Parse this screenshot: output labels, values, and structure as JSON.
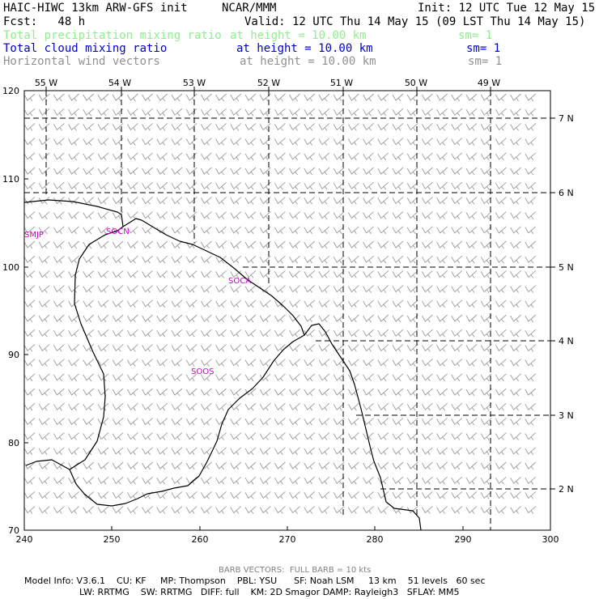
{
  "header": {
    "model": "HAIC-HIWC 13km ARW-GFS init",
    "org": "NCAR/MMM",
    "init": "Init: 12 UTC Tue 12 May 15",
    "fcst": "Fcst:   48 h",
    "valid": "Valid: 12 UTC Thu 14 May 15 (09 LST Thu 14 May 15)"
  },
  "fields": [
    {
      "name": "Total precipitation mixing ratio",
      "level": "at height = 10.00 km",
      "sm": "sm= 1",
      "color": "#90ee90"
    },
    {
      "name": "Total cloud mixing ratio",
      "level": "at height = 10.00 km",
      "sm": "sm= 1",
      "color": "#0000cc"
    },
    {
      "name": "Horizontal wind vectors",
      "level": "at height = 10.00 km",
      "sm": "sm= 1",
      "color": "#909090"
    }
  ],
  "map": {
    "lon_labels": [
      "55 W",
      "54 W",
      "53 W",
      "52 W",
      "51 W",
      "50 W",
      "49 W"
    ],
    "lat_labels": [
      "7 N",
      "6 N",
      "5 N",
      "4 N",
      "3 N",
      "2 N"
    ],
    "x_ticks": [
      "240",
      "250",
      "260",
      "270",
      "280",
      "290",
      "300"
    ],
    "y_ticks": [
      "120",
      "110",
      "100",
      "90",
      "80",
      "70"
    ],
    "x_range": [
      240,
      300
    ],
    "y_range": [
      70,
      120
    ],
    "stations": [
      "SMJP",
      "SOCN",
      "SOCA",
      "SOOS"
    ],
    "coast_color": "#000000",
    "grid_style": "dashed"
  },
  "footer": {
    "barb_note": "BARB VECTORS:  FULL BARB = 10 kts",
    "line1": "Model Info: V3.6.1    CU: KF     MP: Thompson    PBL: YSU      SF: Noah LSM     13 km    51 levels   60 sec",
    "line2": "LW: RRTMG    SW: RRTMG   DIFF: full    KM: 2D Smagor DAMP: Rayleigh3   SFLAY: MM5"
  }
}
